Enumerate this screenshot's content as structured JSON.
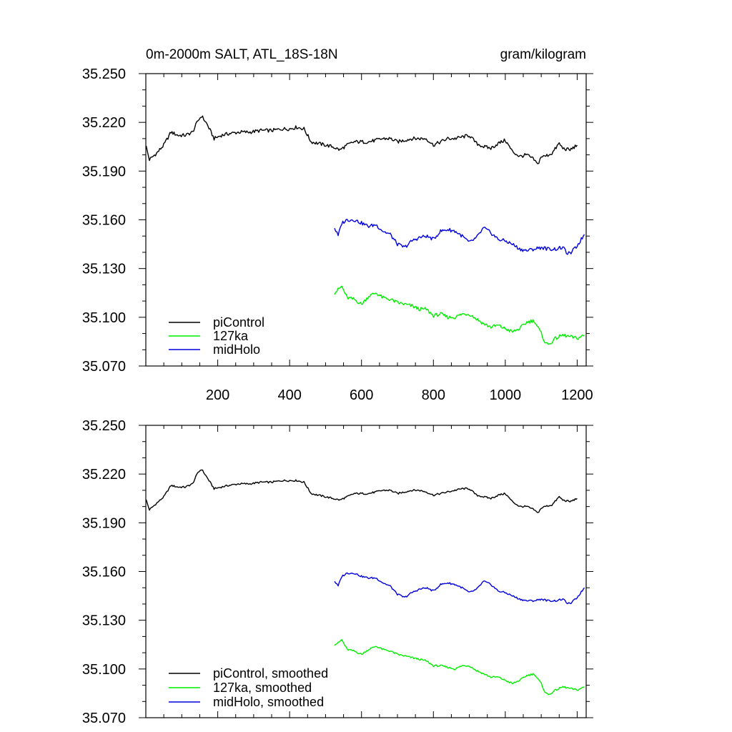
{
  "chart_data": [
    {
      "type": "line",
      "title_left": "0m-2000m SALT, ATL_18S-18N",
      "title_right": "gram/kilogram",
      "xlim": [
        0,
        1225
      ],
      "ylim": [
        35.07,
        35.25
      ],
      "xticks": [
        200,
        400,
        600,
        800,
        1000,
        1200
      ],
      "xtick_labels": [
        "200",
        "400",
        "600",
        "800",
        "1000",
        "1200"
      ],
      "yticks": [
        35.07,
        35.1,
        35.13,
        35.16,
        35.19,
        35.22,
        35.25
      ],
      "ytick_labels": [
        "35.070",
        "35.100",
        "35.130",
        "35.160",
        "35.190",
        "35.220",
        "35.250"
      ],
      "legend_position": "bottom-left",
      "series": [
        {
          "name": "piControl",
          "color": "#000000",
          "x": [
            1,
            10,
            30,
            50,
            70,
            90,
            110,
            130,
            145,
            155,
            170,
            190,
            210,
            230,
            260,
            290,
            320,
            350,
            380,
            400,
            420,
            440,
            460,
            480,
            500,
            520,
            540,
            560,
            580,
            600,
            620,
            640,
            660,
            680,
            700,
            720,
            740,
            760,
            780,
            800,
            820,
            840,
            860,
            880,
            900,
            920,
            940,
            960,
            980,
            1000,
            1020,
            1040,
            1060,
            1080,
            1090,
            1100,
            1110,
            1130,
            1150,
            1160,
            1180,
            1200
          ],
          "y": [
            35.205,
            35.197,
            35.201,
            35.206,
            35.214,
            35.212,
            35.212,
            35.214,
            35.221,
            35.224,
            35.219,
            35.21,
            35.212,
            35.213,
            35.214,
            35.214,
            35.215,
            35.215,
            35.216,
            35.216,
            35.217,
            35.216,
            35.208,
            35.207,
            35.206,
            35.205,
            35.203,
            35.206,
            35.208,
            35.208,
            35.208,
            35.209,
            35.21,
            35.21,
            35.208,
            35.209,
            35.21,
            35.21,
            35.21,
            35.206,
            35.208,
            35.21,
            35.21,
            35.211,
            35.212,
            35.207,
            35.205,
            35.204,
            35.207,
            35.209,
            35.202,
            35.199,
            35.2,
            35.197,
            35.194,
            35.199,
            35.199,
            35.201,
            35.207,
            35.204,
            35.203,
            35.206
          ]
        },
        {
          "name": "127ka",
          "color": "#00ee00",
          "x": [
            525,
            535,
            545,
            560,
            580,
            600,
            620,
            640,
            660,
            680,
            700,
            720,
            740,
            760,
            780,
            800,
            820,
            840,
            860,
            880,
            900,
            920,
            940,
            960,
            980,
            1000,
            1020,
            1040,
            1060,
            1080,
            1100,
            1110,
            1120,
            1140,
            1160,
            1180,
            1200,
            1220
          ],
          "y": [
            35.115,
            35.117,
            35.119,
            35.112,
            35.111,
            35.108,
            35.113,
            35.115,
            35.112,
            35.111,
            35.109,
            35.108,
            35.107,
            35.105,
            35.105,
            35.101,
            35.102,
            35.1,
            35.1,
            35.102,
            35.102,
            35.099,
            35.096,
            35.094,
            35.095,
            35.093,
            35.091,
            35.093,
            35.097,
            35.098,
            35.09,
            35.085,
            35.083,
            35.087,
            35.089,
            35.088,
            35.087,
            35.089
          ]
        },
        {
          "name": "midHolo",
          "color": "#0000dd",
          "x": [
            525,
            535,
            545,
            560,
            580,
            600,
            620,
            640,
            660,
            680,
            700,
            720,
            740,
            760,
            780,
            800,
            820,
            840,
            860,
            880,
            900,
            920,
            940,
            960,
            980,
            1000,
            1020,
            1040,
            1060,
            1080,
            1100,
            1120,
            1140,
            1160,
            1170,
            1180,
            1200,
            1220
          ],
          "y": [
            35.155,
            35.15,
            35.158,
            35.16,
            35.16,
            35.158,
            35.156,
            35.157,
            35.153,
            35.151,
            35.145,
            35.143,
            35.147,
            35.149,
            35.15,
            35.148,
            35.153,
            35.154,
            35.153,
            35.15,
            35.146,
            35.149,
            35.155,
            35.152,
            35.148,
            35.147,
            35.145,
            35.142,
            35.141,
            35.142,
            35.143,
            35.142,
            35.142,
            35.143,
            35.14,
            35.139,
            35.144,
            35.151
          ]
        }
      ]
    },
    {
      "type": "line",
      "xlim": [
        0,
        1225
      ],
      "ylim": [
        35.07,
        35.25
      ],
      "xticks": [
        200,
        400,
        600,
        800,
        1000,
        1200
      ],
      "yticks": [
        35.07,
        35.1,
        35.13,
        35.16,
        35.19,
        35.22,
        35.25
      ],
      "ytick_labels": [
        "35.070",
        "35.100",
        "35.130",
        "35.160",
        "35.190",
        "35.220",
        "35.250"
      ],
      "legend_position": "bottom-left",
      "series": [
        {
          "name": "piControl, smoothed",
          "color": "#000000",
          "x": [
            1,
            10,
            30,
            50,
            70,
            90,
            110,
            130,
            145,
            155,
            170,
            190,
            210,
            230,
            260,
            290,
            320,
            350,
            380,
            400,
            420,
            440,
            460,
            480,
            500,
            520,
            540,
            560,
            580,
            600,
            620,
            640,
            660,
            680,
            700,
            720,
            740,
            760,
            780,
            800,
            820,
            840,
            860,
            880,
            900,
            920,
            940,
            960,
            980,
            1000,
            1020,
            1040,
            1060,
            1080,
            1090,
            1100,
            1110,
            1130,
            1150,
            1160,
            1180,
            1200
          ],
          "y": [
            35.204,
            35.198,
            35.202,
            35.206,
            35.213,
            35.212,
            35.212,
            35.214,
            35.221,
            35.223,
            35.218,
            35.211,
            35.212,
            35.213,
            35.214,
            35.214,
            35.215,
            35.215,
            35.216,
            35.216,
            35.216,
            35.215,
            35.208,
            35.207,
            35.206,
            35.205,
            35.204,
            35.206,
            35.208,
            35.208,
            35.208,
            35.209,
            35.21,
            35.21,
            35.208,
            35.209,
            35.21,
            35.21,
            35.209,
            35.207,
            35.208,
            35.209,
            35.21,
            35.211,
            35.211,
            35.207,
            35.206,
            35.205,
            35.207,
            35.208,
            35.203,
            35.2,
            35.2,
            35.198,
            35.196,
            35.199,
            35.2,
            35.201,
            35.206,
            35.204,
            35.203,
            35.205
          ]
        },
        {
          "name": "127ka, smoothed",
          "color": "#00ee00",
          "x": [
            525,
            535,
            545,
            560,
            580,
            600,
            620,
            640,
            660,
            680,
            700,
            720,
            740,
            760,
            780,
            800,
            820,
            840,
            860,
            880,
            900,
            920,
            940,
            960,
            980,
            1000,
            1020,
            1040,
            1060,
            1080,
            1100,
            1110,
            1120,
            1140,
            1160,
            1180,
            1200,
            1220
          ],
          "y": [
            35.115,
            35.116,
            35.118,
            35.112,
            35.111,
            35.109,
            35.112,
            35.114,
            35.112,
            35.111,
            35.109,
            35.108,
            35.107,
            35.106,
            35.105,
            35.102,
            35.102,
            35.101,
            35.1,
            35.102,
            35.102,
            35.099,
            35.097,
            35.095,
            35.095,
            35.093,
            35.091,
            35.093,
            35.096,
            35.097,
            35.091,
            35.086,
            35.084,
            35.087,
            35.089,
            35.088,
            35.087,
            35.089
          ]
        },
        {
          "name": "midHolo, smoothed",
          "color": "#0000dd",
          "x": [
            525,
            535,
            545,
            560,
            580,
            600,
            620,
            640,
            660,
            680,
            700,
            720,
            740,
            760,
            780,
            800,
            820,
            840,
            860,
            880,
            900,
            920,
            940,
            960,
            980,
            1000,
            1020,
            1040,
            1060,
            1080,
            1100,
            1120,
            1140,
            1160,
            1170,
            1180,
            1200,
            1220
          ],
          "y": [
            35.154,
            35.151,
            35.157,
            35.159,
            35.159,
            35.157,
            35.156,
            35.156,
            35.153,
            35.151,
            35.146,
            35.144,
            35.147,
            35.149,
            35.15,
            35.148,
            35.152,
            35.153,
            35.152,
            35.15,
            35.147,
            35.149,
            35.154,
            35.152,
            35.148,
            35.147,
            35.145,
            35.143,
            35.142,
            35.142,
            35.143,
            35.142,
            35.142,
            35.143,
            35.141,
            35.14,
            35.144,
            35.15
          ]
        }
      ]
    }
  ]
}
